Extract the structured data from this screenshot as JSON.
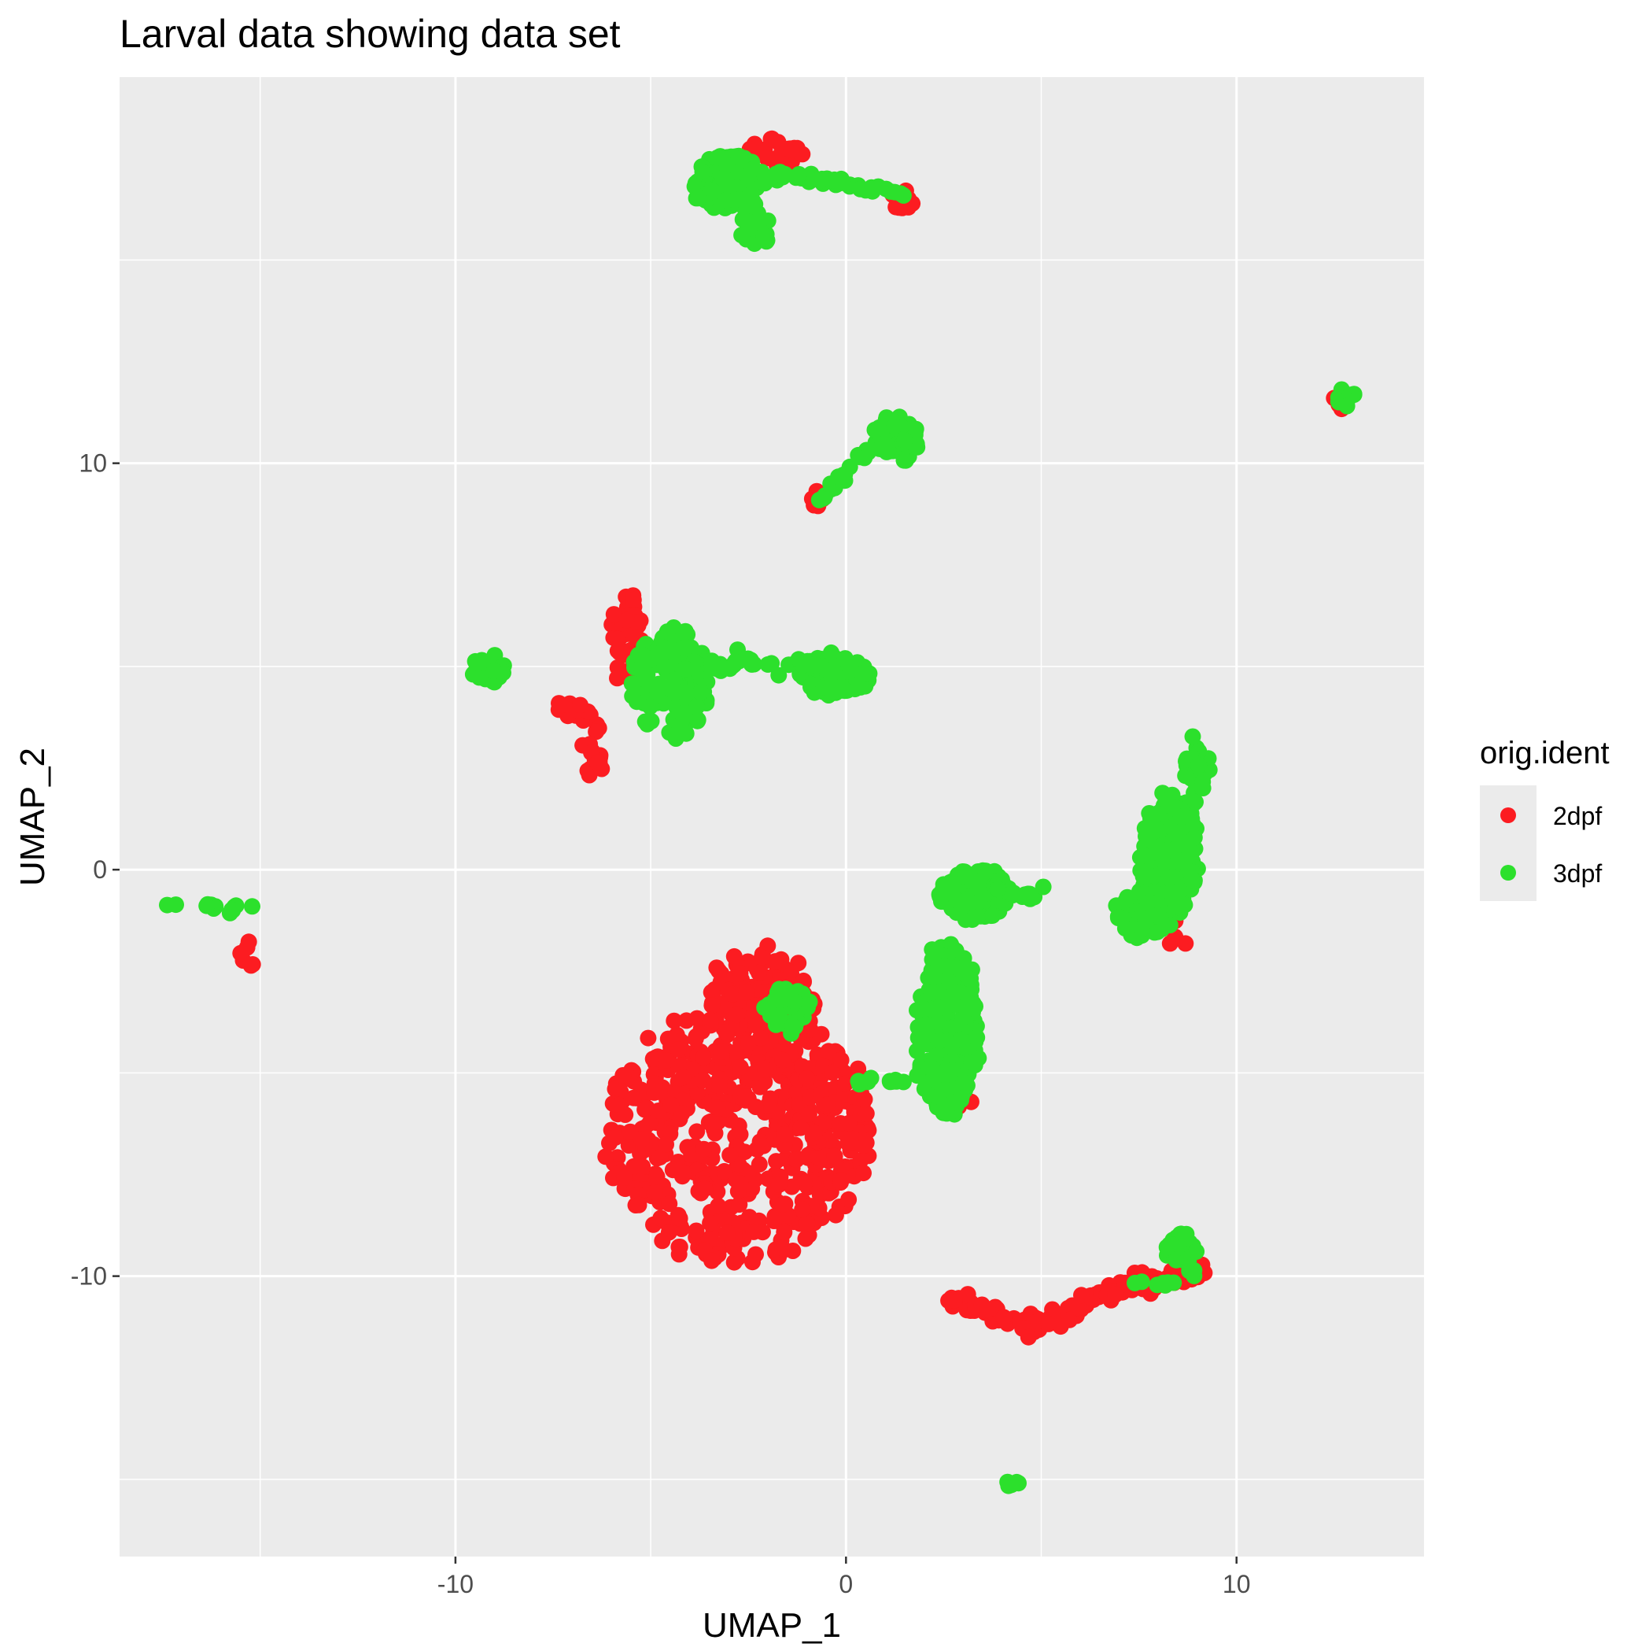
{
  "chart_data": {
    "type": "scatter",
    "title": "Larval data showing data set",
    "xlabel": "UMAP_1",
    "ylabel": "UMAP_2",
    "xlim": [
      -18.6,
      14.8
    ],
    "ylim": [
      -16.9,
      19.5
    ],
    "x_ticks": [
      -10,
      0,
      10
    ],
    "x_tick_labels": [
      "-10",
      "0",
      "10"
    ],
    "y_ticks": [
      -10,
      0,
      10
    ],
    "y_tick_labels": [
      "-10",
      "0",
      "10"
    ],
    "grid": true,
    "panel_background": "#ebebeb",
    "legend": {
      "title": "orig.ident",
      "position": "right"
    },
    "series": [
      {
        "name": "2dpf",
        "color": "#fc1c21",
        "clusters": [
          {
            "cx": -2.8,
            "cy": -6.5,
            "rx": 3.4,
            "ry": 3.2,
            "n": 520
          },
          {
            "cx": -2.2,
            "cy": -3.5,
            "rx": 1.4,
            "ry": 1.6,
            "n": 160
          },
          {
            "cx": -0.4,
            "cy": -5.8,
            "rx": 1.0,
            "ry": 1.4,
            "n": 60
          },
          {
            "cx": -5.6,
            "cy": 5.7,
            "rx": 0.35,
            "ry": 1.1,
            "n": 45
          },
          {
            "cx": -7.0,
            "cy": 3.9,
            "rx": 0.5,
            "ry": 0.25,
            "n": 20
          },
          {
            "cx": -6.5,
            "cy": 3.0,
            "rx": 0.25,
            "ry": 0.8,
            "n": 18
          },
          {
            "cx": -1.8,
            "cy": 17.7,
            "rx": 0.8,
            "ry": 0.35,
            "n": 30
          },
          {
            "cx": 1.4,
            "cy": 16.4,
            "rx": 0.35,
            "ry": 0.3,
            "n": 10
          },
          {
            "cx": -0.8,
            "cy": 9.0,
            "rx": 0.2,
            "ry": 0.3,
            "n": 6
          },
          {
            "cx": 12.6,
            "cy": 11.5,
            "rx": 0.2,
            "ry": 0.15,
            "n": 4
          },
          {
            "cx": -15.3,
            "cy": -2.1,
            "rx": 0.2,
            "ry": 0.4,
            "n": 6
          },
          {
            "cx": 2.8,
            "cy": -5.5,
            "rx": 0.6,
            "ry": 0.5,
            "n": 14
          },
          {
            "cx": 8.4,
            "cy": -1.5,
            "rx": 0.3,
            "ry": 0.5,
            "n": 8
          }
        ],
        "arcs": [
          {
            "x": [
              2.7,
              3.5,
              4.5,
              5.5,
              6.5,
              7.5,
              8.5,
              9.0
            ],
            "y": [
              -10.5,
              -10.8,
              -11.2,
              -11.0,
              -10.5,
              -10.2,
              -10.0,
              -9.9
            ],
            "n": 140,
            "spread": 0.25
          }
        ]
      },
      {
        "name": "3dpf",
        "color": "#2ce02c",
        "clusters": [
          {
            "cx": 3.3,
            "cy": -0.6,
            "rx": 0.9,
            "ry": 0.6,
            "n": 150
          },
          {
            "cx": 2.6,
            "cy": -3.9,
            "rx": 0.75,
            "ry": 2.2,
            "n": 240
          },
          {
            "cx": 8.3,
            "cy": 0.3,
            "rx": 0.7,
            "ry": 1.6,
            "n": 200
          },
          {
            "cx": 7.6,
            "cy": -1.1,
            "rx": 0.7,
            "ry": 0.6,
            "n": 60
          },
          {
            "cx": 9.0,
            "cy": 2.4,
            "rx": 0.3,
            "ry": 0.9,
            "n": 30
          },
          {
            "cx": -4.5,
            "cy": 4.6,
            "rx": 1.0,
            "ry": 1.4,
            "n": 150
          },
          {
            "cx": -0.3,
            "cy": 4.8,
            "rx": 0.9,
            "ry": 0.45,
            "n": 140
          },
          {
            "cx": -9.2,
            "cy": 4.9,
            "rx": 0.45,
            "ry": 0.3,
            "n": 30
          },
          {
            "cx": -3.0,
            "cy": 16.9,
            "rx": 0.9,
            "ry": 0.7,
            "n": 130
          },
          {
            "cx": -2.3,
            "cy": 15.8,
            "rx": 0.4,
            "ry": 0.5,
            "n": 30
          },
          {
            "cx": 1.3,
            "cy": 10.6,
            "rx": 0.55,
            "ry": 0.55,
            "n": 80
          },
          {
            "cx": 12.8,
            "cy": 11.6,
            "rx": 0.25,
            "ry": 0.2,
            "n": 12
          },
          {
            "cx": 4.3,
            "cy": -15.1,
            "rx": 0.2,
            "ry": 0.15,
            "n": 6
          },
          {
            "cx": 8.6,
            "cy": -9.3,
            "rx": 0.45,
            "ry": 0.35,
            "n": 35
          },
          {
            "cx": -1.5,
            "cy": -3.4,
            "rx": 0.6,
            "ry": 0.6,
            "n": 30
          }
        ],
        "arcs": [
          {
            "x": [
              -4.0,
              -2.0,
              -0.5,
              0.5,
              1.5
            ],
            "y": [
              5.2,
              5.2,
              4.8,
              5.0,
              16.9
            ],
            "n": 0,
            "spread": 0.2
          },
          {
            "x": [
              -4.2,
              -3.0,
              -1.5,
              -0.3
            ],
            "y": [
              5.0,
              5.1,
              5.1,
              5.0
            ],
            "n": 60,
            "spread": 0.2
          },
          {
            "x": [
              -1.8,
              -0.9,
              0.4,
              1.4
            ],
            "y": [
              17.1,
              17.0,
              16.8,
              16.6
            ],
            "n": 40,
            "spread": 0.15
          },
          {
            "x": [
              -0.8,
              -0.2,
              0.4,
              1.0
            ],
            "y": [
              9.0,
              9.6,
              10.2,
              10.5
            ],
            "n": 22,
            "spread": 0.12
          },
          {
            "x": [
              -17.4,
              -16.5,
              -15.8,
              -15.2
            ],
            "y": [
              -0.95,
              -0.85,
              -1.0,
              -0.85
            ],
            "n": 14,
            "spread": 0.1
          },
          {
            "x": [
              0.2,
              1.0,
              1.8
            ],
            "y": [
              -5.3,
              -5.2,
              -5.1
            ],
            "n": 14,
            "spread": 0.15
          },
          {
            "x": [
              3.8,
              4.5,
              5.1
            ],
            "y": [
              -0.4,
              -0.7,
              -0.5
            ],
            "n": 20,
            "spread": 0.12
          },
          {
            "x": [
              7.3,
              7.9,
              8.3,
              8.7,
              9.0
            ],
            "y": [
              -10.3,
              -10.2,
              -10.1,
              -10.0,
              -9.8
            ],
            "n": 10,
            "spread": 0.15
          }
        ]
      }
    ]
  }
}
